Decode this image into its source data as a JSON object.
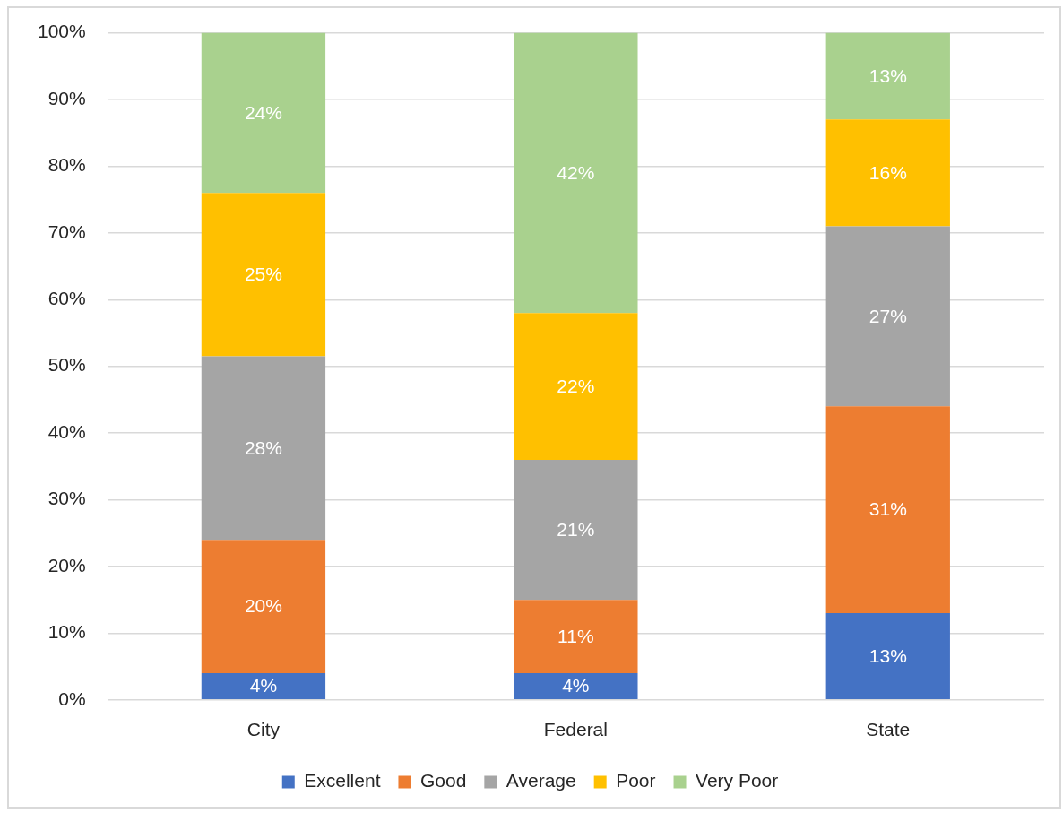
{
  "chart_data": {
    "type": "bar",
    "stacked": true,
    "categories": [
      "City",
      "Federal",
      "State"
    ],
    "series": [
      {
        "name": "Excellent",
        "color": "#4472c4",
        "values": [
          4,
          4,
          13
        ],
        "value_labels": [
          "4%",
          "4%",
          "13%"
        ]
      },
      {
        "name": "Good",
        "color": "#ed7d31",
        "values": [
          20,
          11,
          31
        ],
        "value_labels": [
          "20%",
          "11%",
          "31%"
        ]
      },
      {
        "name": "Average",
        "color": "#a5a5a5",
        "values": [
          27.5,
          21,
          27
        ],
        "value_labels": [
          "28%",
          "21%",
          "27%"
        ]
      },
      {
        "name": "Poor",
        "color": "#ffc000",
        "values": [
          24.5,
          22,
          16
        ],
        "value_labels": [
          "25%",
          "22%",
          "16%"
        ]
      },
      {
        "name": "Very Poor",
        "color": "#a9d18e",
        "values": [
          24,
          42,
          13
        ],
        "value_labels": [
          "24%",
          "42%",
          "13%"
        ]
      }
    ],
    "ylim": [
      0,
      100
    ],
    "yticks": [
      {
        "value": 0,
        "label": "0%"
      },
      {
        "value": 10,
        "label": "10%"
      },
      {
        "value": 20,
        "label": "20%"
      },
      {
        "value": 30,
        "label": "30%"
      },
      {
        "value": 40,
        "label": "40%"
      },
      {
        "value": 50,
        "label": "50%"
      },
      {
        "value": 60,
        "label": "60%"
      },
      {
        "value": 70,
        "label": "70%"
      },
      {
        "value": 80,
        "label": "80%"
      },
      {
        "value": 90,
        "label": "90%"
      },
      {
        "value": 100,
        "label": "100%"
      }
    ],
    "grid": "y",
    "legend": "bottom"
  }
}
